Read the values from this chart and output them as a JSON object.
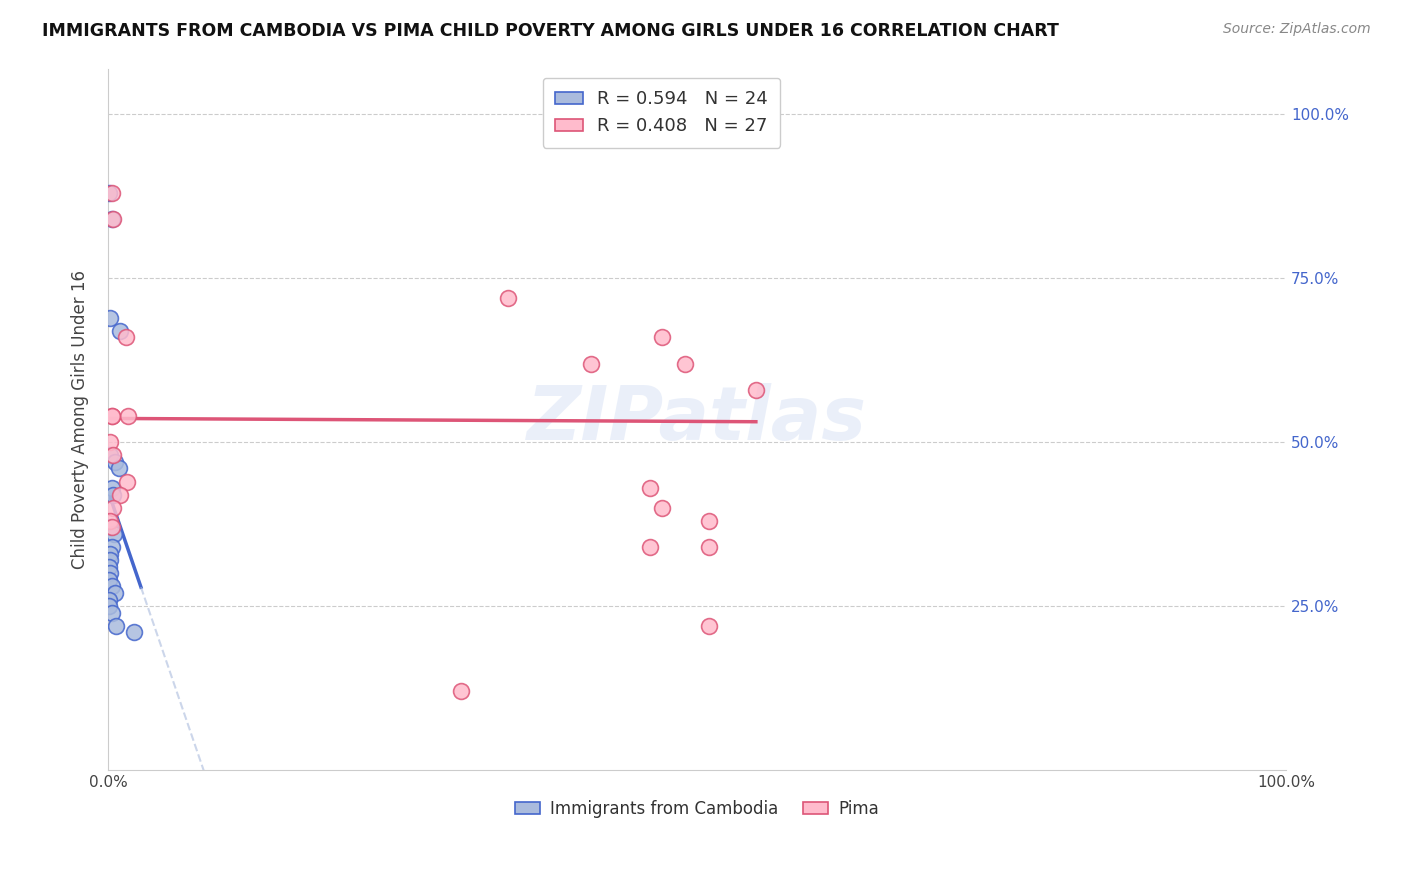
{
  "title": "IMMIGRANTS FROM CAMBODIA VS PIMA CHILD POVERTY AMONG GIRLS UNDER 16 CORRELATION CHART",
  "source": "Source: ZipAtlas.com",
  "ylabel": "Child Poverty Among Girls Under 16",
  "legend_bottom": [
    "Immigrants from Cambodia",
    "Pima"
  ],
  "blue_label": "R = 0.594   N = 24",
  "pink_label": "R = 0.408   N = 27",
  "blue_points": [
    [
      0.001,
      0.88
    ],
    [
      0.003,
      0.84
    ],
    [
      0.002,
      0.69
    ],
    [
      0.01,
      0.67
    ],
    [
      0.002,
      0.48
    ],
    [
      0.006,
      0.47
    ],
    [
      0.009,
      0.46
    ],
    [
      0.003,
      0.43
    ],
    [
      0.004,
      0.42
    ],
    [
      0.002,
      0.37
    ],
    [
      0.005,
      0.36
    ],
    [
      0.003,
      0.34
    ],
    [
      0.002,
      0.33
    ],
    [
      0.002,
      0.32
    ],
    [
      0.001,
      0.31
    ],
    [
      0.002,
      0.3
    ],
    [
      0.001,
      0.29
    ],
    [
      0.003,
      0.28
    ],
    [
      0.006,
      0.27
    ],
    [
      0.001,
      0.26
    ],
    [
      0.001,
      0.25
    ],
    [
      0.003,
      0.24
    ],
    [
      0.007,
      0.22
    ],
    [
      0.022,
      0.21
    ]
  ],
  "pink_points": [
    [
      0.003,
      0.88
    ],
    [
      0.004,
      0.84
    ],
    [
      0.015,
      0.66
    ],
    [
      0.003,
      0.54
    ],
    [
      0.017,
      0.54
    ],
    [
      0.002,
      0.5
    ],
    [
      0.004,
      0.48
    ],
    [
      0.016,
      0.44
    ],
    [
      0.01,
      0.42
    ],
    [
      0.004,
      0.4
    ],
    [
      0.002,
      0.38
    ],
    [
      0.003,
      0.37
    ],
    [
      0.003,
      0.54
    ],
    [
      0.38,
      1.0
    ],
    [
      0.53,
      1.0
    ],
    [
      0.34,
      0.72
    ],
    [
      0.47,
      0.66
    ],
    [
      0.41,
      0.62
    ],
    [
      0.49,
      0.62
    ],
    [
      0.55,
      0.58
    ],
    [
      0.46,
      0.43
    ],
    [
      0.47,
      0.4
    ],
    [
      0.51,
      0.38
    ],
    [
      0.46,
      0.34
    ],
    [
      0.51,
      0.34
    ],
    [
      0.51,
      0.22
    ],
    [
      0.3,
      0.12
    ]
  ],
  "blue_color": "#aabbdd",
  "pink_color": "#ffbbcc",
  "blue_line_color": "#4466cc",
  "pink_line_color": "#dd5577",
  "background_color": "#ffffff",
  "grid_color": "#cccccc",
  "xlim": [
    0.0,
    1.0
  ],
  "ylim": [
    0.0,
    1.07
  ],
  "watermark": "ZIPatlas",
  "marker_size": 130
}
